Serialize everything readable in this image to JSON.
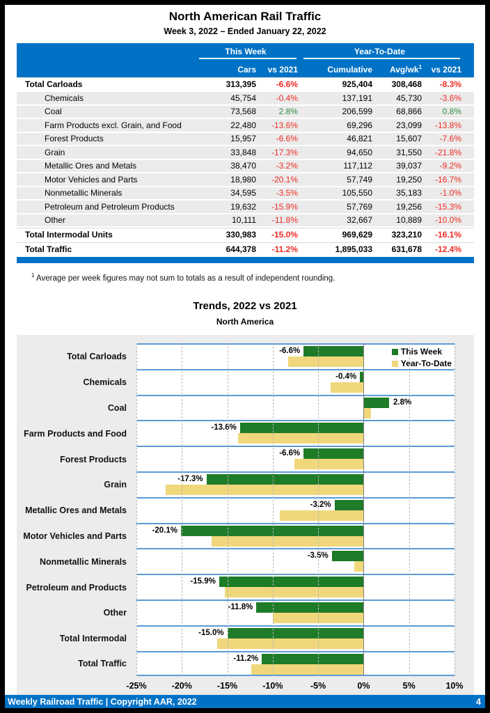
{
  "header": {
    "title": "North American Rail Traffic",
    "subtitle": "Week 3, 2022 – Ended January 22, 2022"
  },
  "table": {
    "group_this_week": "This Week",
    "group_ytd": "Year-To-Date",
    "col_cars": "Cars",
    "col_vs_tw": "vs 2021",
    "col_cumulative": "Cumulative",
    "col_avgwk": "Avg/wk",
    "col_avgwk_sup": "1",
    "col_vs_ytd": "vs 2021",
    "rows": [
      {
        "label": "Total Carloads",
        "total": true,
        "cars": "313,395",
        "vs": "-6.6%",
        "vs_dir": "neg",
        "cum": "925,404",
        "avg": "308,468",
        "ytd": "-8.3%",
        "ytd_dir": "neg"
      },
      {
        "label": "Chemicals",
        "total": false,
        "cars": "45,754",
        "vs": "-0.4%",
        "vs_dir": "neg",
        "cum": "137,191",
        "avg": "45,730",
        "ytd": "-3.6%",
        "ytd_dir": "neg"
      },
      {
        "label": "Coal",
        "total": false,
        "cars": "73,568",
        "vs": "2.8%",
        "vs_dir": "pos",
        "cum": "206,599",
        "avg": "68,866",
        "ytd": "0.8%",
        "ytd_dir": "pos"
      },
      {
        "label": "Farm Products excl. Grain, and Food",
        "total": false,
        "cars": "22,480",
        "vs": "-13.6%",
        "vs_dir": "neg",
        "cum": "69,296",
        "avg": "23,099",
        "ytd": "-13.8%",
        "ytd_dir": "neg"
      },
      {
        "label": "Forest Products",
        "total": false,
        "cars": "15,957",
        "vs": "-6.6%",
        "vs_dir": "neg",
        "cum": "46,821",
        "avg": "15,607",
        "ytd": "-7.6%",
        "ytd_dir": "neg"
      },
      {
        "label": "Grain",
        "total": false,
        "cars": "33,848",
        "vs": "-17.3%",
        "vs_dir": "neg",
        "cum": "94,650",
        "avg": "31,550",
        "ytd": "-21.8%",
        "ytd_dir": "neg"
      },
      {
        "label": "Metallic Ores and Metals",
        "total": false,
        "cars": "38,470",
        "vs": "-3.2%",
        "vs_dir": "neg",
        "cum": "117,112",
        "avg": "39,037",
        "ytd": "-9.2%",
        "ytd_dir": "neg"
      },
      {
        "label": "Motor Vehicles and Parts",
        "total": false,
        "cars": "18,980",
        "vs": "-20.1%",
        "vs_dir": "neg",
        "cum": "57,749",
        "avg": "19,250",
        "ytd": "-16.7%",
        "ytd_dir": "neg"
      },
      {
        "label": "Nonmetallic Minerals",
        "total": false,
        "cars": "34,595",
        "vs": "-3.5%",
        "vs_dir": "neg",
        "cum": "105,550",
        "avg": "35,183",
        "ytd": "-1.0%",
        "ytd_dir": "neg"
      },
      {
        "label": "Petroleum and Petroleum Products",
        "total": false,
        "cars": "19,632",
        "vs": "-15.9%",
        "vs_dir": "neg",
        "cum": "57,769",
        "avg": "19,256",
        "ytd": "-15.3%",
        "ytd_dir": "neg"
      },
      {
        "label": "Other",
        "total": false,
        "cars": "10,111",
        "vs": "-11.8%",
        "vs_dir": "neg",
        "cum": "32,667",
        "avg": "10,889",
        "ytd": "-10.0%",
        "ytd_dir": "neg"
      },
      {
        "label": "Total Intermodal Units",
        "total": true,
        "cars": "330,983",
        "vs": "-15.0%",
        "vs_dir": "neg",
        "cum": "969,629",
        "avg": "323,210",
        "ytd": "-16.1%",
        "ytd_dir": "neg"
      },
      {
        "label": "Total Traffic",
        "total": true,
        "cars": "644,378",
        "vs": "-11.2%",
        "vs_dir": "neg",
        "cum": "1,895,033",
        "avg": "631,678",
        "ytd": "-12.4%",
        "ytd_dir": "neg"
      }
    ]
  },
  "footnote": {
    "sup": "1",
    "text": " Average per week figures may not sum to totals as a result of independent rounding."
  },
  "chart_data": {
    "type": "bar",
    "orientation": "horizontal",
    "title": "Trends, 2022 vs 2021",
    "subtitle": "North America",
    "categories": [
      "Total Carloads",
      "Chemicals",
      "Coal",
      "Farm Products and Food",
      "Forest Products",
      "Grain",
      "Metallic Ores and Metals",
      "Motor Vehicles and Parts",
      "Nonmetallic Minerals",
      "Petroleum and Products",
      "Other",
      "Total Intermodal",
      "Total Traffic"
    ],
    "series": [
      {
        "name": "This Week",
        "color": "#1E7B28",
        "values": [
          -6.6,
          -0.4,
          2.8,
          -13.6,
          -6.6,
          -17.3,
          -3.2,
          -20.1,
          -3.5,
          -15.9,
          -11.8,
          -15.0,
          -11.2
        ],
        "labels": [
          "-6.6%",
          "-0.4%",
          "2.8%",
          "-13.6%",
          "-6.6%",
          "-17.3%",
          "-3.2%",
          "-20.1%",
          "-3.5%",
          "-15.9%",
          "-11.8%",
          "-15.0%",
          "-11.2%"
        ]
      },
      {
        "name": "Year-To-Date",
        "color": "#F0D77B",
        "values": [
          -8.3,
          -3.6,
          0.8,
          -13.8,
          -7.6,
          -21.8,
          -9.2,
          -16.7,
          -1.0,
          -15.3,
          -10.0,
          -16.1,
          -12.4
        ],
        "labels": []
      }
    ],
    "xlim": [
      -25,
      10
    ],
    "ticks": [
      {
        "v": -25,
        "label": "-25%"
      },
      {
        "v": -20,
        "label": "-20%"
      },
      {
        "v": -15,
        "label": "-15%"
      },
      {
        "v": -10,
        "label": "-10%"
      },
      {
        "v": -5,
        "label": "-5%"
      },
      {
        "v": 0,
        "label": "0%"
      },
      {
        "v": 5,
        "label": "5%"
      },
      {
        "v": 10,
        "label": "10%"
      }
    ],
    "grid": "vertical-dashed",
    "legend_position": "top-right-inside"
  },
  "footer": {
    "text": "Weekly Railroad Traffic | Copyright AAR, 2022",
    "page": "4"
  },
  "colors": {
    "accent_blue": "#0072C6",
    "band_separator_blue": "#5B9BD5",
    "negative_red": "#EE2B24",
    "positive_green": "#2E8B3D",
    "bar_green": "#1E7B28",
    "bar_yellow": "#F0D77B",
    "row_gray": "#EBEBEB",
    "panel_gray": "#ECECEC"
  }
}
